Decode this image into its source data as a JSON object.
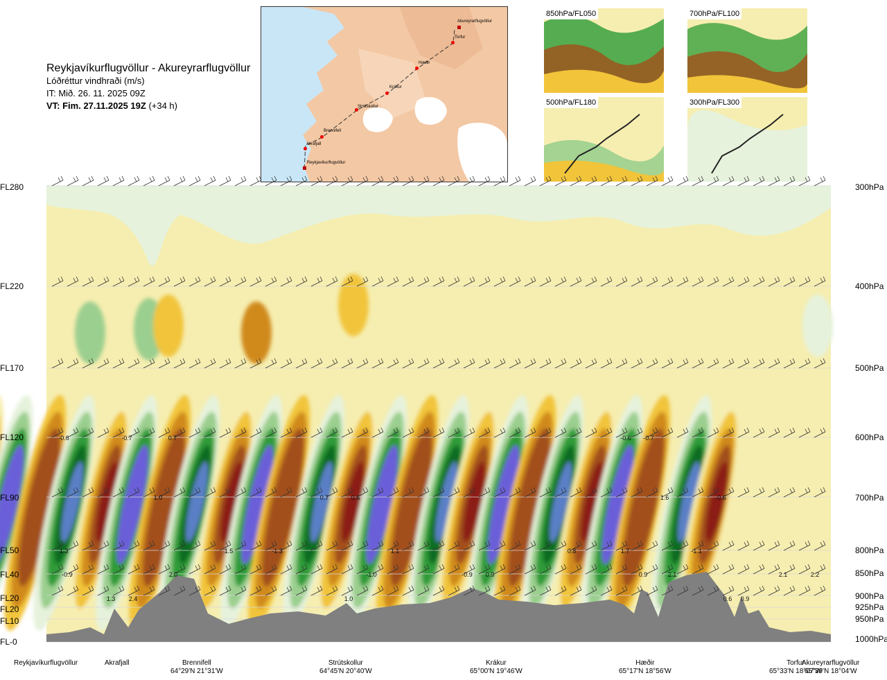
{
  "header": {
    "route": "Reykjavíkurflugvöllur - Akureyrarflugvöllur",
    "quantity": "Lóðréttur vindhraði (m/s)",
    "init_time": "IT: Mið. 26. 11. 2025 09Z",
    "valid_label": "VT: Fim. 27.11.2025 19Z",
    "valid_offset": "(+34 h)"
  },
  "map": {
    "points": [
      "Akureyrarflugvöllur",
      "Torfur",
      "Hæðir",
      "Krákur",
      "Strútskollur",
      "Brennifell",
      "Akrafjall",
      "Reykjavíkurflugvöllur"
    ]
  },
  "thumbnails": [
    {
      "label": "850hPa/FL050"
    },
    {
      "label": "700hPa/FL100"
    },
    {
      "label": "500hPa/FL180"
    },
    {
      "label": "300hPa/FL300"
    }
  ],
  "colors": {
    "neg_strong": "#8b1a12",
    "neg_mid": "#a2501a",
    "neg": "#d08a1c",
    "neg_light": "#f1c43a",
    "neutral": "#f6eeb0",
    "pos_light": "#e6f2dc",
    "pos": "#9bcf8f",
    "pos_mid": "#2e9b38",
    "pos_strong": "#0d6c24",
    "pos_blue": "#5a7fc6",
    "pos_violet": "#6b5fd8",
    "terrain": "#808080",
    "map_land": "#f3c8a4",
    "map_sea": "#c9e6f6"
  },
  "chart_data": {
    "type": "heatmap",
    "title": "Lóðréttur vindhraði (m/s)",
    "xlabel": "",
    "ylabel": "",
    "left_axis": [
      "FL280",
      "FL220",
      "FL170",
      "FL120",
      "FL90",
      "FL50",
      "FL40",
      "FL20",
      "FL20",
      "FL10",
      "FL-0"
    ],
    "right_axis": [
      "300hPa",
      "400hPa",
      "500hPa",
      "600hPa",
      "700hPa",
      "800hPa",
      "850hPa",
      "900hPa",
      "925hPa",
      "950hPa",
      "1000hPa"
    ],
    "waypoints": [
      {
        "name": "Reykjavíkurflugvöllur",
        "coord": ""
      },
      {
        "name": "Akrafjall",
        "coord": ""
      },
      {
        "name": "Brennifell",
        "coord": "64°29'N 21°31'W"
      },
      {
        "name": "Strútskollur",
        "coord": "64°45'N 20°40'W"
      },
      {
        "name": "Krákur",
        "coord": "65°00'N 19°46'W"
      },
      {
        "name": "Hæðir",
        "coord": "65°17'N 18°56'W"
      },
      {
        "name": "Torfur",
        "coord": "65°33'N 18°07'W"
      },
      {
        "name": "Akureyrarflugvöllur",
        "coord": "65°39'N 18°04'W"
      }
    ],
    "value_labels": [
      {
        "level": "600hPa",
        "v": [
          "-0.6",
          "-0.7",
          "0.7",
          "-0.6",
          "-0.7"
        ]
      },
      {
        "level": "700hPa",
        "v": [
          "1.0",
          "0.7",
          "0.6",
          "1.6",
          "-0.6"
        ]
      },
      {
        "level": "800hPa",
        "v": [
          "1.3",
          "1.5",
          "-1.3",
          "1.1",
          "0.8",
          "1.7",
          "-1.1"
        ]
      },
      {
        "level": "850hPa",
        "v": [
          "-0.9",
          "2.0",
          "-1.0",
          "-0.9",
          "0.9",
          "0.9",
          "2.1",
          "2.1",
          "2.2"
        ]
      },
      {
        "level": "900hPa",
        "v": [
          "1.3",
          "2.4",
          "1.0",
          "0.6",
          "0.9"
        ]
      }
    ]
  }
}
